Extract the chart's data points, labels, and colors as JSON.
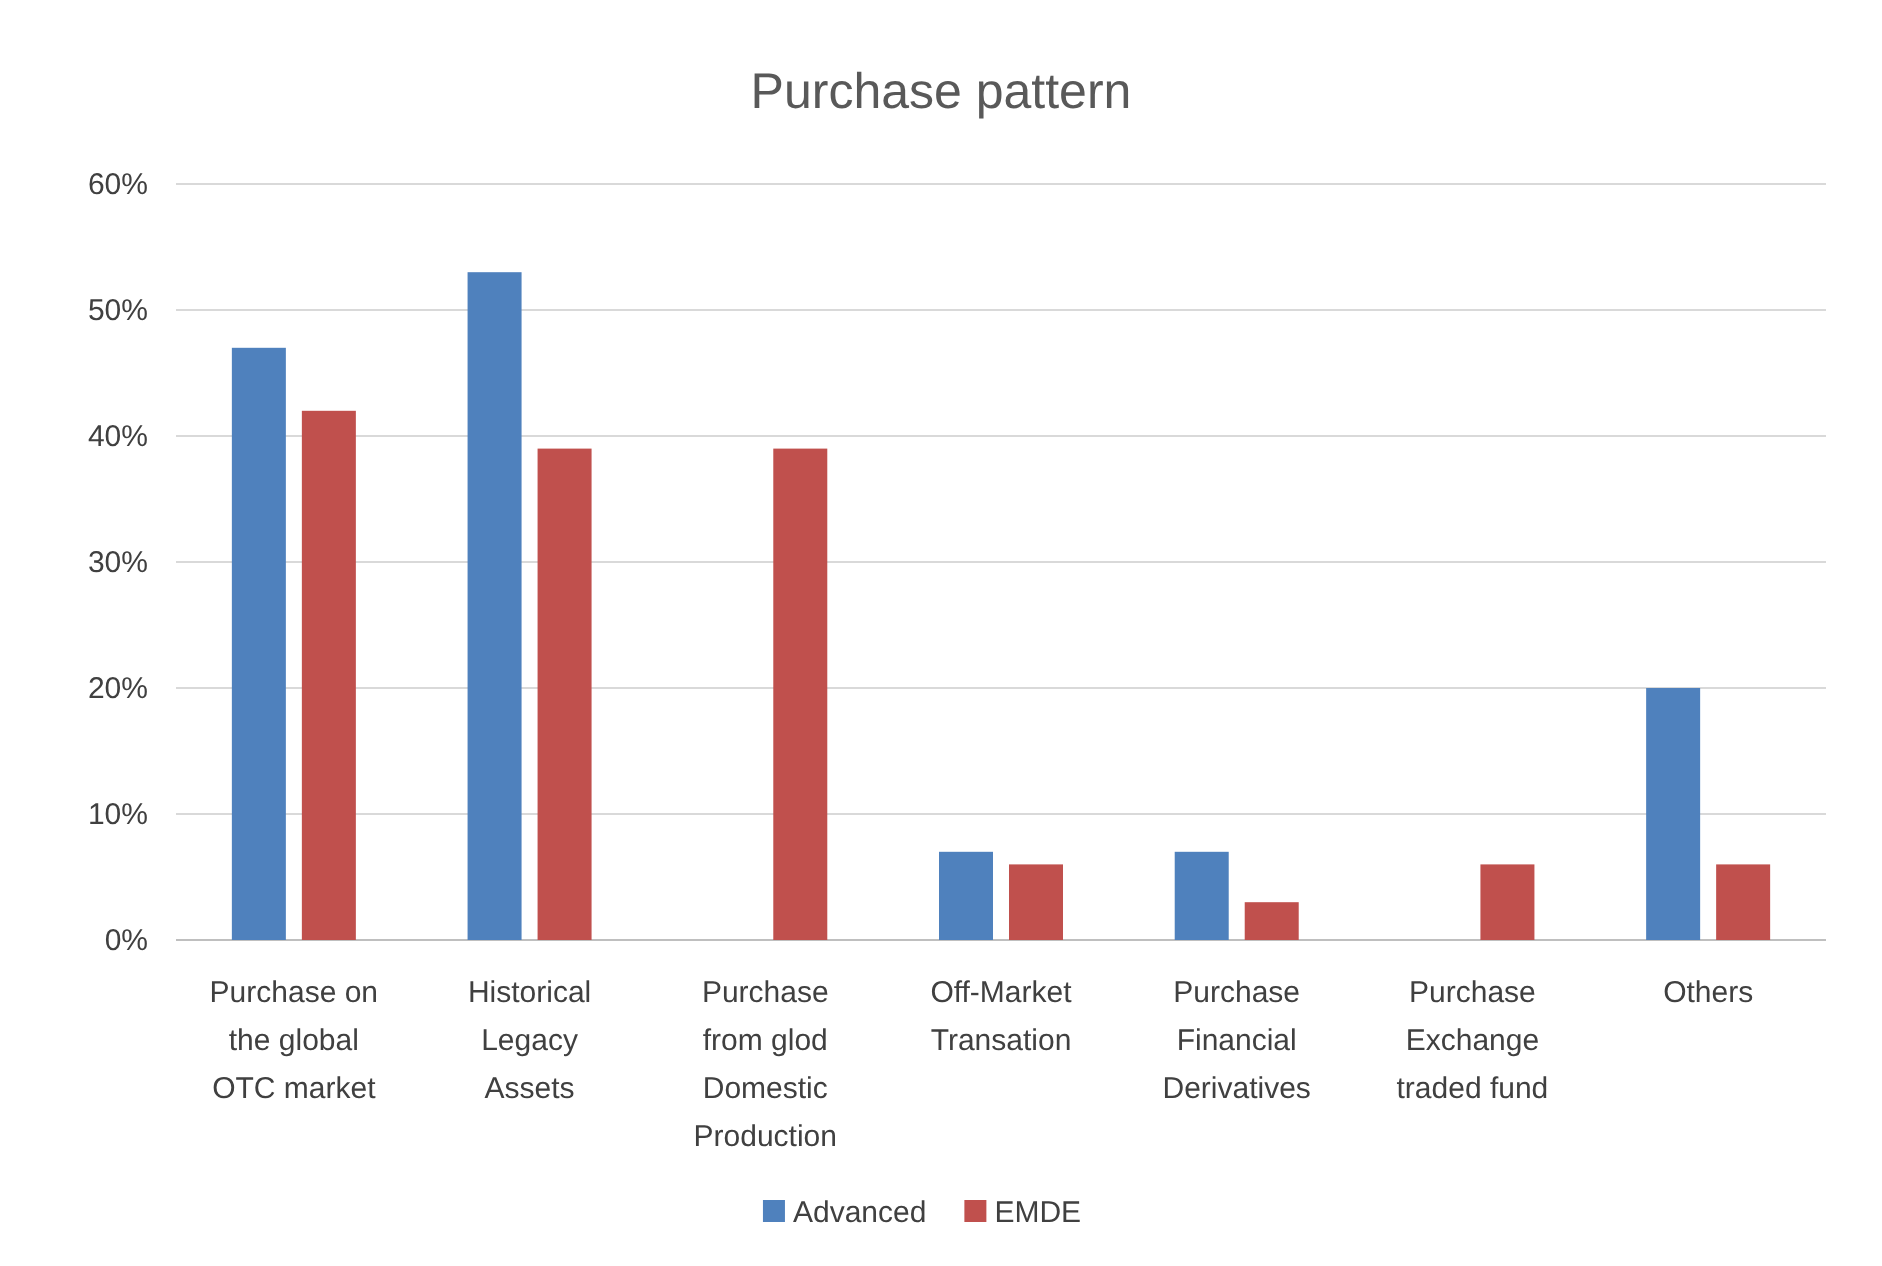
{
  "chart_data": {
    "type": "bar",
    "title": "Purchase pattern",
    "categories": [
      "Purchase on the global OTC market",
      "Historical Legacy Assets",
      "Purchase from glod Domestic Production",
      "Off-Market Transation",
      "Purchase Financial Derivatives",
      "Purchase Exchange traded fund",
      "Others"
    ],
    "series": [
      {
        "name": "Advanced",
        "color": "#4f81bd",
        "values": [
          47,
          53,
          0,
          7,
          7,
          0,
          20
        ]
      },
      {
        "name": "EMDE",
        "color": "#c0504d",
        "values": [
          42,
          39,
          39,
          6,
          3,
          6,
          6
        ]
      }
    ],
    "ylim": [
      0,
      60
    ],
    "yticks": [
      {
        "value": 0,
        "label": "0%"
      },
      {
        "value": 10,
        "label": "10%"
      },
      {
        "value": 20,
        "label": "20%"
      },
      {
        "value": 30,
        "label": "30%"
      },
      {
        "value": 40,
        "label": "40%"
      },
      {
        "value": 50,
        "label": "50%"
      },
      {
        "value": 60,
        "label": "60%"
      }
    ],
    "grid": "y",
    "legend": "bottom"
  }
}
